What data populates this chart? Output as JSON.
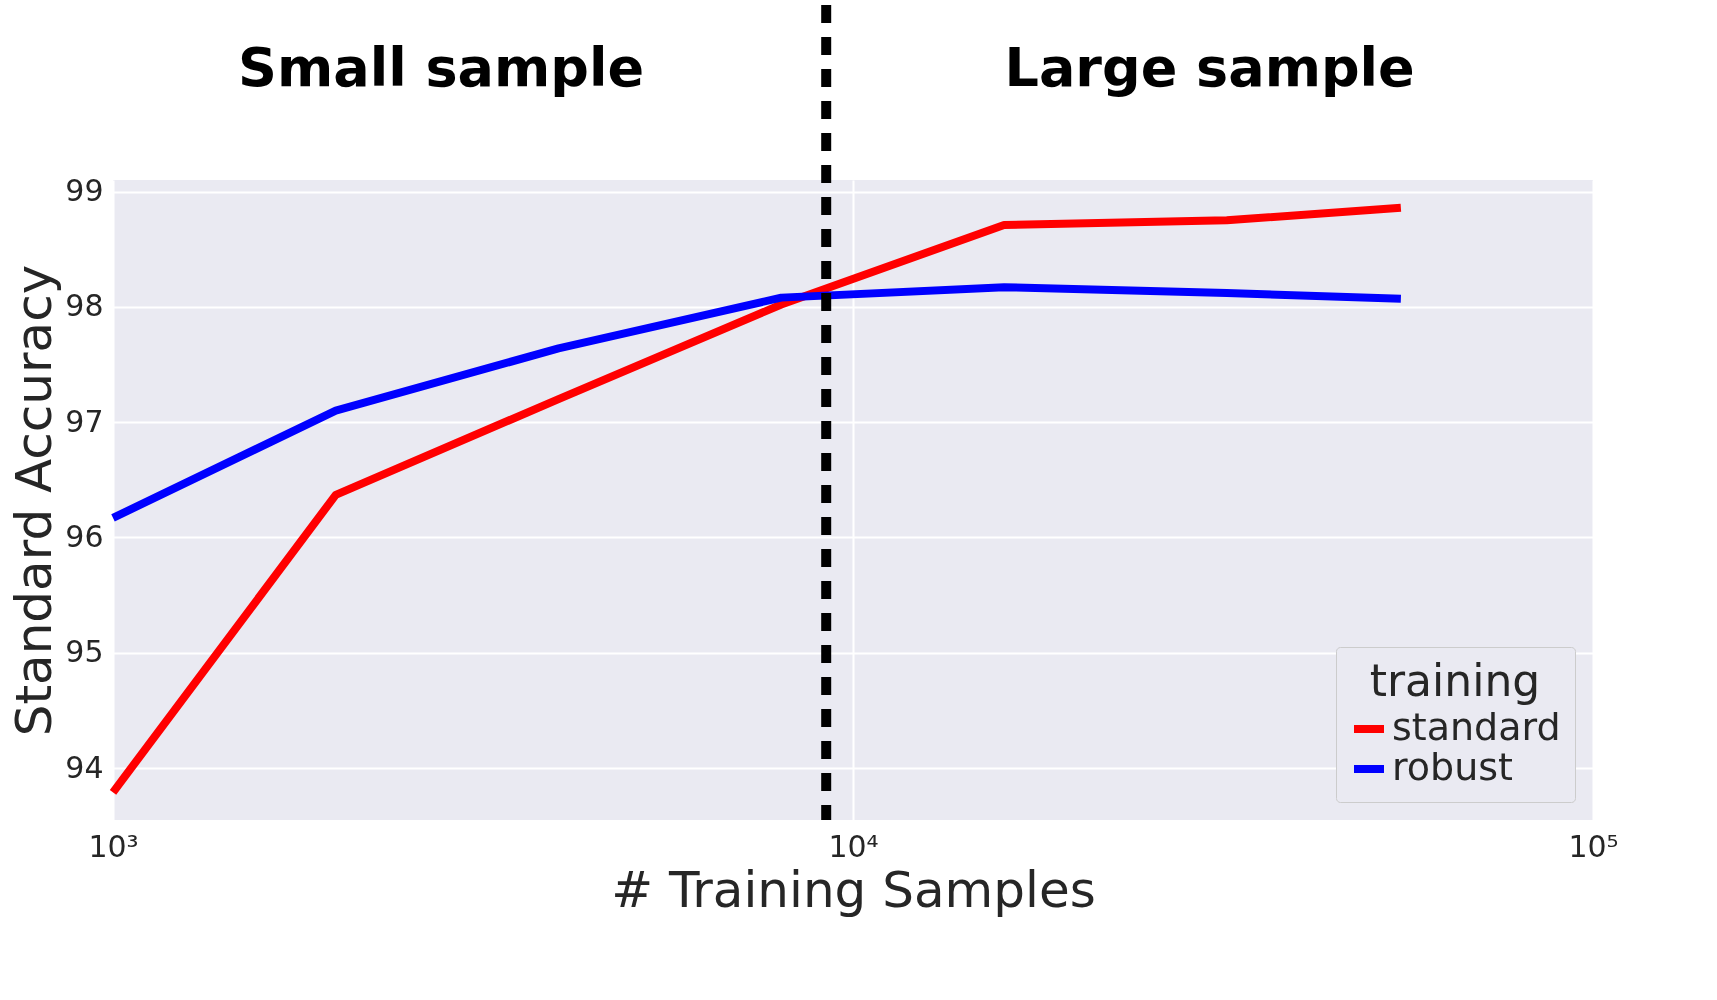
{
  "chart_data": {
    "type": "line",
    "xlabel": "# Training Samples",
    "ylabel": "Standard Accuracy",
    "legend_title": "training",
    "x": [
      1000,
      2000,
      4000,
      8000,
      16000,
      32000,
      55000
    ],
    "series": [
      {
        "name": "standard",
        "color": "#ff0000",
        "values": [
          93.79,
          96.37,
          97.2,
          98.02,
          98.71,
          98.75,
          98.86
        ]
      },
      {
        "name": "robust",
        "color": "#0000ff",
        "values": [
          96.17,
          97.1,
          97.64,
          98.08,
          98.17,
          98.12,
          98.07
        ]
      }
    ],
    "log": "x",
    "xlim": [
      1000,
      100000
    ],
    "xticks": [
      {
        "value": 1000,
        "label": "10³"
      },
      {
        "value": 10000,
        "label": "10⁴"
      },
      {
        "value": 100000,
        "label": "10⁵"
      }
    ],
    "ylim": [
      93.55,
      99.1
    ],
    "yticks": [
      94,
      95,
      96,
      97,
      98,
      99
    ],
    "grid": true,
    "legend": "bottom right",
    "marker": "none",
    "line_style": "solid",
    "ref_lines": [
      {
        "axis": "x",
        "value": 9200,
        "color": "#000000",
        "line_style": "dashed"
      }
    ],
    "annotations": [
      "Small sample",
      "Large sample"
    ]
  }
}
